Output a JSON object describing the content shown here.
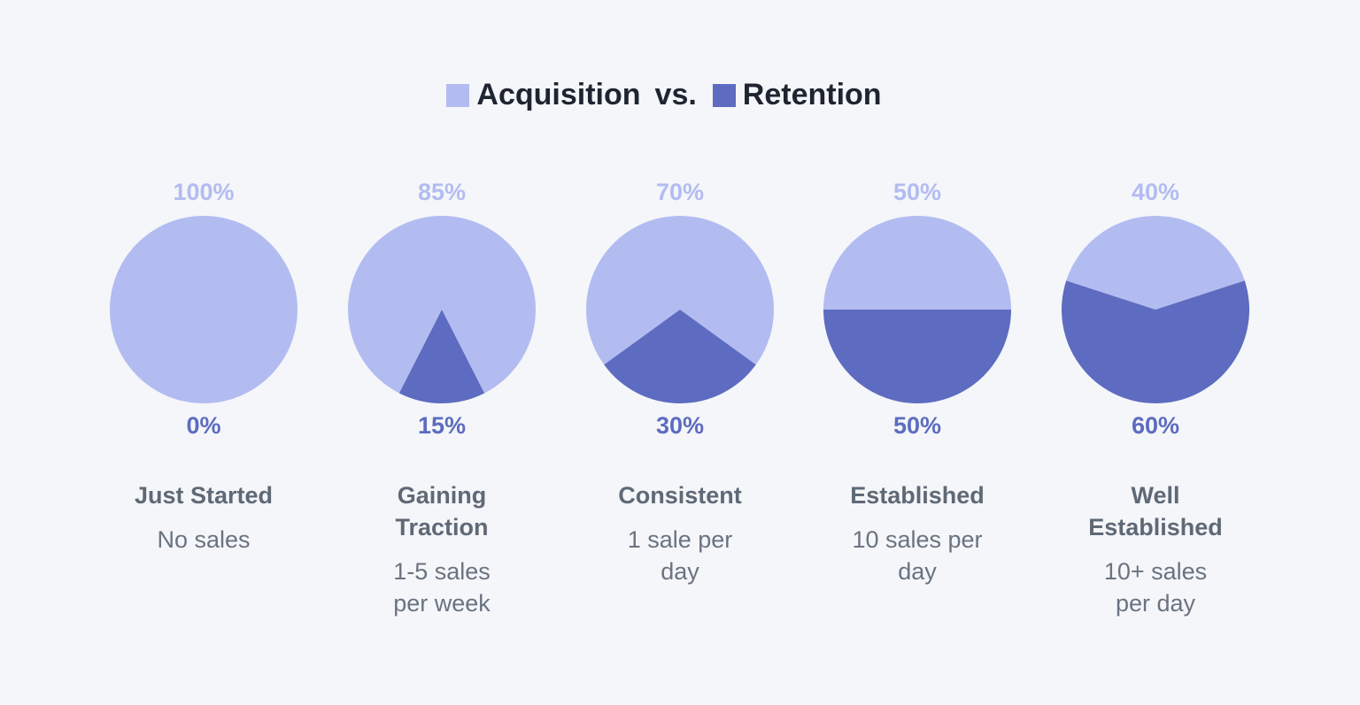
{
  "legend": {
    "items": [
      {
        "name": "Acquisition",
        "color": "#b3bcf1"
      },
      {
        "name": "Retention",
        "color": "#5d6cc0"
      }
    ],
    "separator": "vs."
  },
  "chart_data": [
    {
      "type": "pie",
      "title": "Just Started",
      "subtitle": "No sales",
      "values": [
        100,
        0
      ],
      "value_labels": [
        "100%",
        "0%"
      ]
    },
    {
      "type": "pie",
      "title": "Gaining Traction",
      "subtitle": "1-5 sales per week",
      "values": [
        85,
        15
      ],
      "value_labels": [
        "85%",
        "15%"
      ]
    },
    {
      "type": "pie",
      "title": "Consistent",
      "subtitle": "1 sale per day",
      "values": [
        70,
        30
      ],
      "value_labels": [
        "70%",
        "30%"
      ]
    },
    {
      "type": "pie",
      "title": "Established",
      "subtitle": "10 sales per day",
      "values": [
        50,
        50
      ],
      "value_labels": [
        "50%",
        "50%"
      ]
    },
    {
      "type": "pie",
      "title": "Well Established",
      "subtitle": "10+ sales per day",
      "values": [
        40,
        60
      ],
      "value_labels": [
        "40%",
        "60%"
      ]
    }
  ]
}
